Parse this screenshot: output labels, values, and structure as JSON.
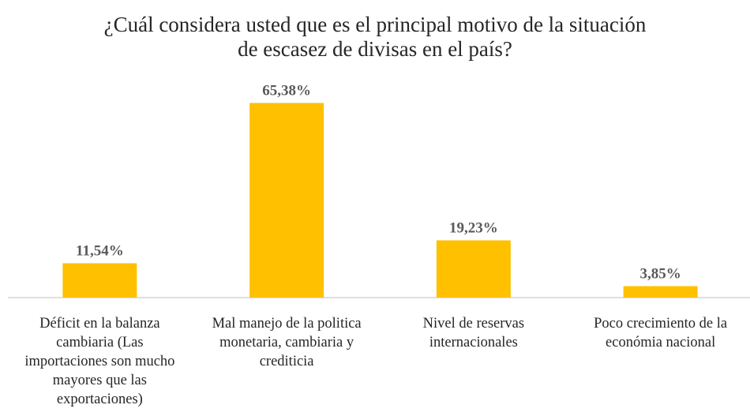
{
  "chart_data": {
    "type": "bar",
    "title": "¿Cuál considera usted que es el principal motivo de la situación de escasez de divisas en el país?",
    "categories": [
      "Déficit en la balanza cambiaria (Las importaciones son mucho mayores que las exportaciones)",
      "Mal manejo de la politica monetaria, cambiaria y crediticia",
      "Nivel de reservas internacionales",
      "Poco crecimiento de la económia nacional"
    ],
    "values": [
      11.54,
      65.38,
      19.23,
      3.85
    ],
    "value_labels": [
      "11,54%",
      "65,38%",
      "19,23%",
      "3,85%"
    ],
    "color": "#ffc000",
    "ylim": [
      0,
      70
    ]
  }
}
